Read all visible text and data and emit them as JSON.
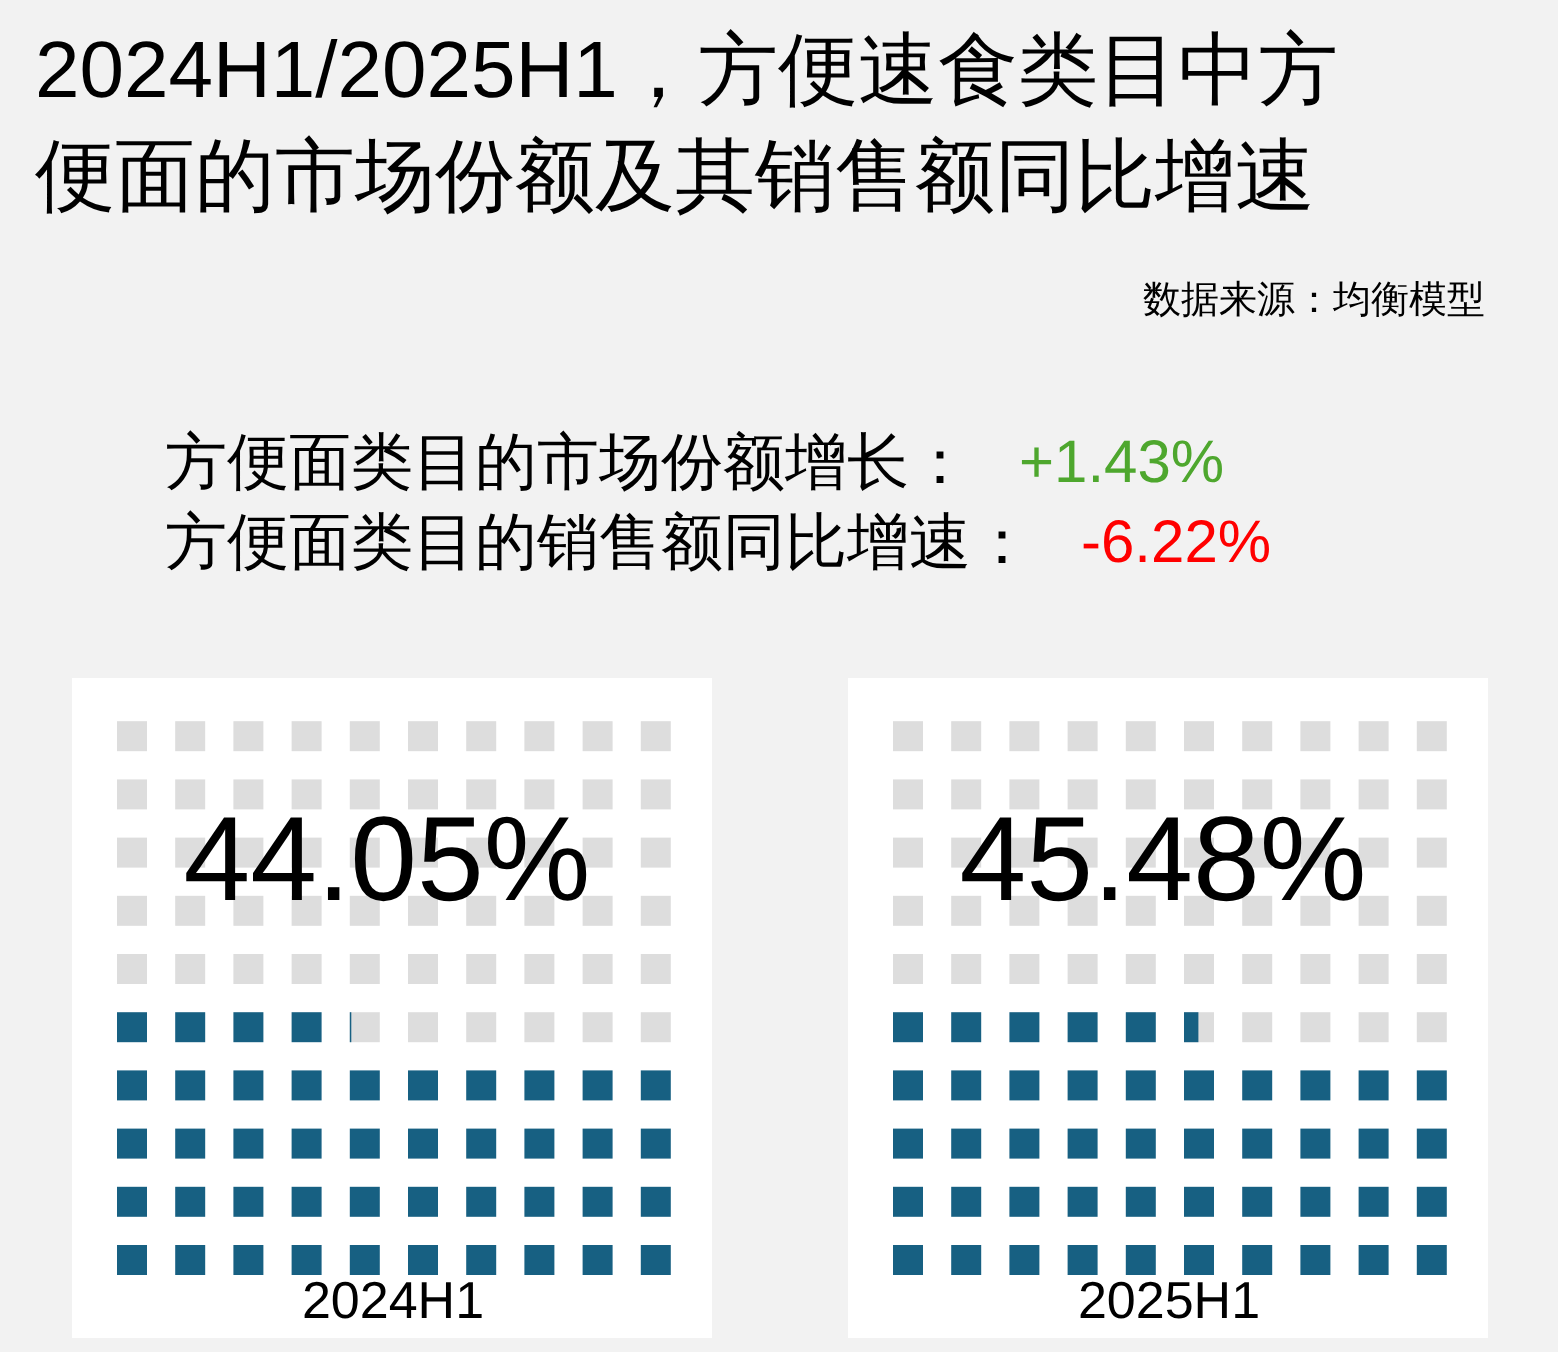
{
  "chart_data": {
    "type": "other",
    "title": "2024H1/2025H1，方便速食类目中方便面的市场份额及其销售额同比增速",
    "annotations": [
      "数据来源：均衡模型",
      "方便面类目的市场份额增长：",
      "+1.43%",
      "方便面类目的销售额同比增速：",
      "-6.22%"
    ],
    "categories": [
      "2024H1",
      "2025H1"
    ],
    "values": [
      44.05,
      45.48
    ],
    "value_labels": [
      "44.05%",
      "45.48%"
    ],
    "color": "#176082"
  }
}
